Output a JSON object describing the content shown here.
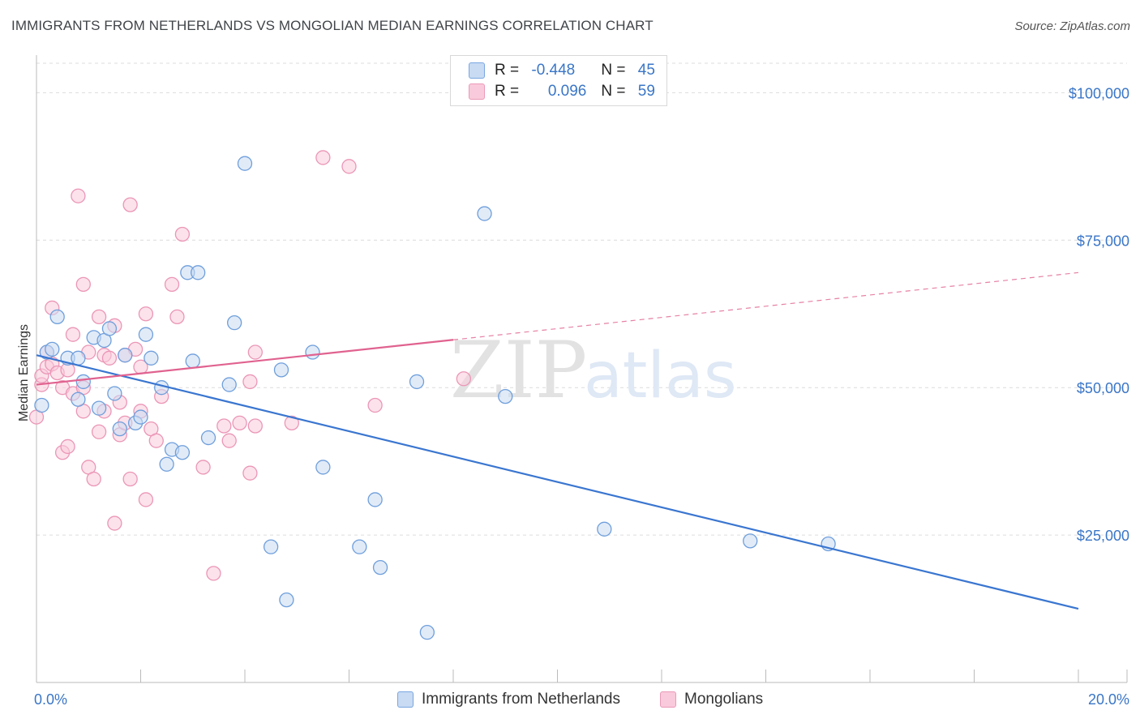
{
  "header": {
    "title": "IMMIGRANTS FROM NETHERLANDS VS MONGOLIAN MEDIAN EARNINGS CORRELATION CHART",
    "source": "Source: ZipAtlas.com"
  },
  "watermark": {
    "zip": "ZIP",
    "atlas": "atlas"
  },
  "legend": {
    "row1": {
      "r_label": "R = ",
      "r_value": "-0.448",
      "n_label": "N = ",
      "n_value": "45"
    },
    "row2": {
      "r_label": "R = ",
      "r_value": "0.096",
      "n_label": "N = ",
      "n_value": "59"
    }
  },
  "colors": {
    "blue": "#3a76d0",
    "blue_fill": "#c8dbf3",
    "pink": "#e0628f",
    "pink_fill": "#f9cadb",
    "tick": "#3a76c7"
  },
  "chart_data": {
    "type": "scatter",
    "ylabel": "Median Earnings",
    "xlim": [
      0,
      20
    ],
    "ylim": [
      0,
      105000
    ],
    "x_tick_labels": [
      "0.0%",
      "20.0%"
    ],
    "y_ticks": [
      25000,
      50000,
      75000,
      100000
    ],
    "y_tick_labels": [
      "$25,000",
      "$50,000",
      "$75,000",
      "$100,000"
    ],
    "grid": true,
    "legend_position": "top-center",
    "series": [
      {
        "name": "Immigrants from Netherlands",
        "color": "#3a76d0",
        "r": -0.448,
        "n": 45,
        "trend": {
          "x": [
            0,
            20
          ],
          "y": [
            55500,
            12500
          ],
          "solid_until": 20
        },
        "points": [
          [
            0.1,
            47000
          ],
          [
            0.2,
            56000
          ],
          [
            0.3,
            56500
          ],
          [
            0.4,
            62000
          ],
          [
            0.6,
            55000
          ],
          [
            0.8,
            55000
          ],
          [
            0.8,
            48000
          ],
          [
            0.9,
            51000
          ],
          [
            1.1,
            58500
          ],
          [
            1.2,
            46500
          ],
          [
            1.3,
            58000
          ],
          [
            1.4,
            60000
          ],
          [
            1.5,
            49000
          ],
          [
            1.6,
            43000
          ],
          [
            1.7,
            55500
          ],
          [
            1.9,
            44000
          ],
          [
            2.0,
            45000
          ],
          [
            2.1,
            59000
          ],
          [
            2.2,
            55000
          ],
          [
            2.4,
            50000
          ],
          [
            2.5,
            37000
          ],
          [
            2.6,
            39500
          ],
          [
            2.8,
            39000
          ],
          [
            2.9,
            69500
          ],
          [
            3.0,
            54500
          ],
          [
            3.1,
            69500
          ],
          [
            3.3,
            41500
          ],
          [
            3.7,
            50500
          ],
          [
            3.8,
            61000
          ],
          [
            4.0,
            88000
          ],
          [
            4.5,
            23000
          ],
          [
            4.7,
            53000
          ],
          [
            4.8,
            14000
          ],
          [
            5.3,
            56000
          ],
          [
            5.5,
            36500
          ],
          [
            6.2,
            23000
          ],
          [
            6.5,
            31000
          ],
          [
            6.6,
            19500
          ],
          [
            7.3,
            51000
          ],
          [
            7.5,
            8500
          ],
          [
            8.6,
            79500
          ],
          [
            9.0,
            48500
          ],
          [
            10.9,
            26000
          ],
          [
            13.7,
            24000
          ],
          [
            15.2,
            23500
          ]
        ]
      },
      {
        "name": "Mongolians",
        "color": "#e0628f",
        "r": 0.096,
        "n": 59,
        "trend": {
          "x": [
            0,
            20
          ],
          "y": [
            50500,
            69500
          ],
          "solid_until": 8
        },
        "points": [
          [
            0.0,
            45000
          ],
          [
            0.1,
            50500
          ],
          [
            0.1,
            52000
          ],
          [
            0.2,
            53500
          ],
          [
            0.2,
            56000
          ],
          [
            0.3,
            54000
          ],
          [
            0.3,
            63500
          ],
          [
            0.4,
            52500
          ],
          [
            0.5,
            50000
          ],
          [
            0.5,
            39000
          ],
          [
            0.6,
            53000
          ],
          [
            0.6,
            40000
          ],
          [
            0.7,
            49000
          ],
          [
            0.7,
            59000
          ],
          [
            0.8,
            82500
          ],
          [
            0.9,
            46000
          ],
          [
            0.9,
            67500
          ],
          [
            0.9,
            50000
          ],
          [
            1.0,
            36500
          ],
          [
            1.0,
            56000
          ],
          [
            1.1,
            34500
          ],
          [
            1.2,
            62000
          ],
          [
            1.2,
            42500
          ],
          [
            1.3,
            46000
          ],
          [
            1.3,
            55500
          ],
          [
            1.4,
            55000
          ],
          [
            1.5,
            60500
          ],
          [
            1.5,
            27000
          ],
          [
            1.6,
            47500
          ],
          [
            1.6,
            42000
          ],
          [
            1.7,
            44000
          ],
          [
            1.7,
            55500
          ],
          [
            1.8,
            81000
          ],
          [
            1.8,
            34500
          ],
          [
            1.9,
            56500
          ],
          [
            2.0,
            46000
          ],
          [
            2.0,
            53500
          ],
          [
            2.1,
            62500
          ],
          [
            2.1,
            31000
          ],
          [
            2.2,
            43000
          ],
          [
            2.3,
            41000
          ],
          [
            2.4,
            48500
          ],
          [
            2.6,
            67500
          ],
          [
            2.7,
            62000
          ],
          [
            2.8,
            76000
          ],
          [
            3.2,
            36500
          ],
          [
            3.4,
            18500
          ],
          [
            3.6,
            43500
          ],
          [
            3.7,
            41000
          ],
          [
            3.9,
            44000
          ],
          [
            4.1,
            35500
          ],
          [
            4.1,
            51000
          ],
          [
            4.2,
            43500
          ],
          [
            4.2,
            56000
          ],
          [
            4.9,
            44000
          ],
          [
            5.5,
            89000
          ],
          [
            6.0,
            87500
          ],
          [
            6.5,
            47000
          ],
          [
            8.2,
            51500
          ]
        ]
      }
    ]
  }
}
